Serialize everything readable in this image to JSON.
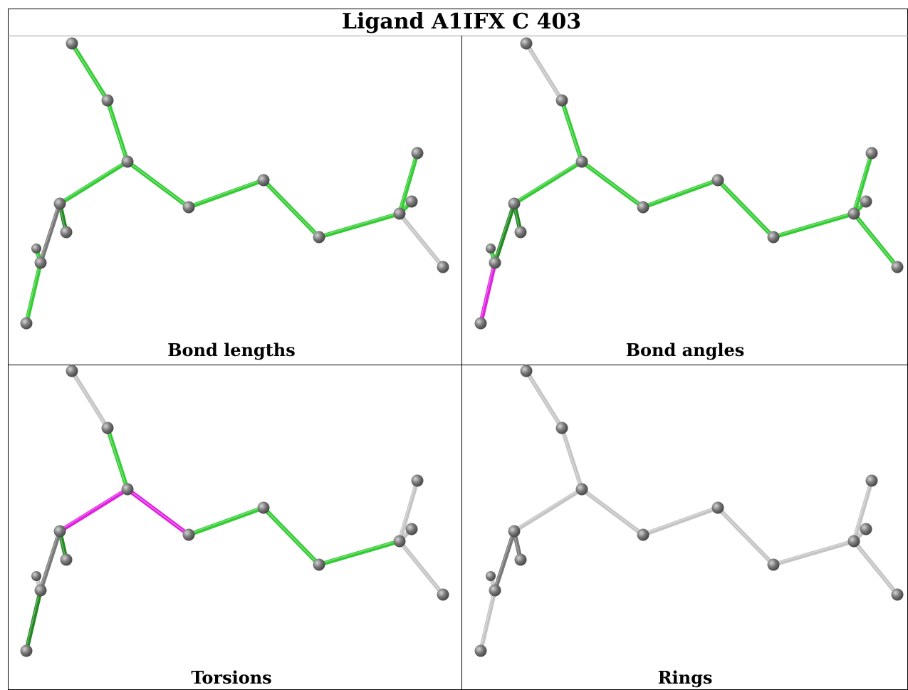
{
  "title": "Ligand A1IFX C 403",
  "panels": [
    {
      "key": "bond_lengths",
      "label": "Bond lengths"
    },
    {
      "key": "bond_angles",
      "label": "Bond angles"
    },
    {
      "key": "torsions",
      "label": "Torsions"
    },
    {
      "key": "rings",
      "label": "Rings"
    }
  ],
  "colors": {
    "ok": "#33cc33",
    "ok_dark": "#228822",
    "outlier": "#e020e0",
    "unassessed": "#c4c4c4",
    "unassessed_dark": "#777777",
    "atom": "#777777",
    "atom_highlight": "#d5d5d5"
  },
  "bond_status": {
    "bond_lengths": [
      "ok",
      "ok",
      "ok",
      "ok",
      "ok",
      "ok",
      "ok",
      "ok",
      "ok",
      "unassessed",
      "unassessed",
      "unassessed",
      "ok_dark",
      "unassessed_dark",
      "ok",
      "ok"
    ],
    "bond_angles": [
      "unassessed",
      "ok",
      "ok",
      "ok",
      "ok",
      "ok",
      "ok",
      "ok",
      "ok",
      "ok",
      "ok",
      "ok",
      "ok_dark",
      "ok_dark",
      "outlier",
      "ok"
    ],
    "torsions": [
      "unassessed",
      "ok",
      "outlier",
      "outlier",
      "ok",
      "ok",
      "ok",
      "unassessed",
      "unassessed",
      "unassessed",
      "unassessed",
      "unassessed",
      "ok_dark",
      "unassessed_dark",
      "ok_dark",
      "unassessed"
    ],
    "rings": [
      "unassessed",
      "unassessed",
      "unassessed",
      "unassessed",
      "unassessed",
      "unassessed",
      "unassessed",
      "unassessed",
      "unassessed",
      "unassessed",
      "unassessed",
      "unassessed",
      "unassessed_dark",
      "unassessed_dark",
      "unassessed",
      "unassessed"
    ]
  }
}
